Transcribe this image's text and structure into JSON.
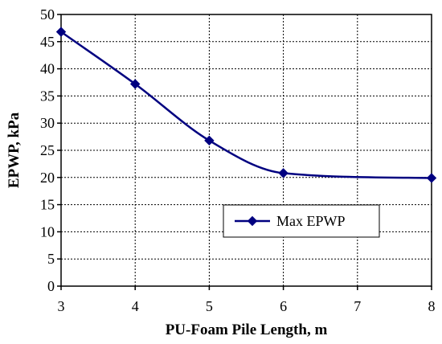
{
  "chart_data": {
    "type": "line",
    "title": "",
    "xlabel": "PU-Foam Pile Length, m",
    "ylabel": "EPWP, kPa",
    "xlim": [
      3,
      8
    ],
    "ylim": [
      0,
      50
    ],
    "x_ticks": [
      "3",
      "4",
      "5",
      "6",
      "7",
      "8"
    ],
    "y_ticks": [
      "0",
      "5",
      "10",
      "15",
      "20",
      "25",
      "30",
      "35",
      "40",
      "45",
      "50"
    ],
    "grid": true,
    "legend_position": "center-right",
    "smooth": true,
    "series": [
      {
        "name": "Max EPWP",
        "x": [
          3,
          4,
          5,
          6,
          8
        ],
        "y": [
          46.8,
          37.2,
          26.8,
          20.8,
          19.9
        ],
        "color": "#000080",
        "marker": "diamond"
      }
    ]
  }
}
